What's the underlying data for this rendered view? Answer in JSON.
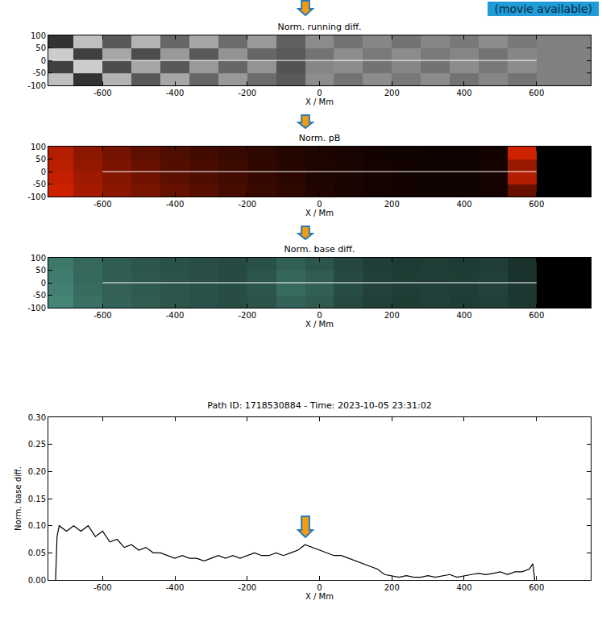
{
  "chart_data": [
    {
      "type": "heatmap",
      "title": "Norm. running diff.",
      "xlabel": "X / Mm",
      "annotation": "(movie available)",
      "color": "#ffffff",
      "zlim": [
        -1,
        1
      ],
      "xlim": [
        -750,
        750
      ],
      "xticks": [
        -600,
        -400,
        -200,
        0,
        200,
        400,
        600
      ],
      "ylim": [
        -100,
        100
      ],
      "yticks": [
        -100,
        -50,
        0,
        50,
        100
      ],
      "x": [
        -720,
        -640,
        -560,
        -480,
        -400,
        -320,
        -240,
        -160,
        -80,
        0,
        80,
        160,
        240,
        320,
        400,
        480,
        560,
        640,
        720
      ],
      "y": [
        -75,
        -25,
        25,
        75
      ],
      "z": [
        [
          0.5,
          -0.6,
          0.4,
          -0.3,
          0.3,
          -0.2,
          0.2,
          -0.15,
          -0.3,
          0.1,
          -0.1,
          0.1,
          -0.05,
          0.1,
          -0.1,
          0.05,
          -0.1,
          0,
          0
        ],
        [
          -0.5,
          0.6,
          -0.4,
          0.3,
          -0.3,
          0.2,
          -0.2,
          0.15,
          -0.35,
          0.05,
          0.1,
          -0.1,
          0.05,
          -0.1,
          0.1,
          -0.05,
          0.1,
          0,
          0
        ],
        [
          0.6,
          -0.5,
          0.3,
          -0.4,
          0.2,
          -0.3,
          0.15,
          -0.2,
          -0.3,
          -0.1,
          0.1,
          -0.05,
          0.1,
          -0.05,
          0.05,
          -0.1,
          0.05,
          0,
          0
        ],
        [
          -0.6,
          0.5,
          -0.3,
          0.4,
          -0.2,
          0.3,
          -0.15,
          0.2,
          -0.25,
          0.1,
          -0.1,
          0.05,
          -0.1,
          0.05,
          -0.05,
          0.1,
          -0.05,
          0,
          0
        ]
      ],
      "path": {
        "x": [
          -740,
          600
        ],
        "y": [
          0,
          0
        ]
      }
    },
    {
      "type": "heatmap",
      "title": "Norm. pB",
      "xlabel": "X / Mm",
      "color": "#ff2a00",
      "zlim": [
        0,
        1
      ],
      "xlim": [
        -750,
        750
      ],
      "xticks": [
        -600,
        -400,
        -200,
        0,
        200,
        400,
        600
      ],
      "ylim": [
        -100,
        100
      ],
      "yticks": [
        -100,
        -50,
        0,
        50,
        100
      ],
      "x": [
        -720,
        -640,
        -560,
        -480,
        -400,
        -320,
        -240,
        -160,
        -80,
        0,
        80,
        160,
        240,
        320,
        400,
        480,
        560,
        640,
        720
      ],
      "y": [
        -75,
        -25,
        25,
        75
      ],
      "z": [
        [
          0.8,
          0.65,
          0.55,
          0.47,
          0.4,
          0.34,
          0.28,
          0.22,
          0.18,
          0.13,
          0.1,
          0.08,
          0.07,
          0.06,
          0.06,
          0.08,
          0.4,
          0,
          0
        ],
        [
          0.77,
          0.62,
          0.52,
          0.44,
          0.37,
          0.31,
          0.26,
          0.21,
          0.17,
          0.12,
          0.1,
          0.08,
          0.07,
          0.06,
          0.06,
          0.08,
          0.7,
          0,
          0
        ],
        [
          0.73,
          0.58,
          0.48,
          0.4,
          0.33,
          0.29,
          0.24,
          0.19,
          0.15,
          0.12,
          0.1,
          0.08,
          0.07,
          0.06,
          0.06,
          0.08,
          0.6,
          0,
          0
        ],
        [
          0.7,
          0.55,
          0.45,
          0.37,
          0.3,
          0.26,
          0.22,
          0.18,
          0.14,
          0.11,
          0.09,
          0.07,
          0.06,
          0.05,
          0.05,
          0.07,
          0.8,
          0,
          0
        ]
      ],
      "path": {
        "x": [
          -600,
          600
        ],
        "y": [
          0,
          0
        ]
      }
    },
    {
      "type": "heatmap",
      "title": "Norm. base diff.",
      "xlabel": "X / Mm",
      "color": "#6fd6bf",
      "zlim": [
        0,
        1
      ],
      "xlim": [
        -750,
        750
      ],
      "xticks": [
        -600,
        -400,
        -200,
        0,
        200,
        400,
        600
      ],
      "ylim": [
        -100,
        100
      ],
      "yticks": [
        -100,
        -50,
        0,
        50,
        100
      ],
      "x": [
        -720,
        -640,
        -560,
        -480,
        -400,
        -320,
        -240,
        -160,
        -80,
        0,
        80,
        160,
        240,
        320,
        400,
        480,
        560,
        640,
        720
      ],
      "y": [
        -75,
        -25,
        25,
        75
      ],
      "z": [
        [
          0.62,
          0.52,
          0.46,
          0.43,
          0.4,
          0.38,
          0.36,
          0.39,
          0.46,
          0.42,
          0.34,
          0.3,
          0.28,
          0.3,
          0.28,
          0.3,
          0.26,
          0,
          0
        ],
        [
          0.6,
          0.5,
          0.45,
          0.42,
          0.4,
          0.38,
          0.36,
          0.4,
          0.5,
          0.45,
          0.36,
          0.31,
          0.29,
          0.3,
          0.29,
          0.31,
          0.25,
          0,
          0
        ],
        [
          0.58,
          0.49,
          0.44,
          0.41,
          0.39,
          0.37,
          0.35,
          0.4,
          0.48,
          0.43,
          0.35,
          0.3,
          0.28,
          0.29,
          0.28,
          0.3,
          0.24,
          0,
          0
        ],
        [
          0.56,
          0.48,
          0.43,
          0.4,
          0.38,
          0.36,
          0.34,
          0.38,
          0.45,
          0.4,
          0.33,
          0.29,
          0.27,
          0.28,
          0.27,
          0.29,
          0.23,
          0,
          0
        ]
      ],
      "path": {
        "x": [
          -600,
          600
        ],
        "y": [
          0,
          0
        ]
      }
    },
    {
      "type": "line",
      "title": "Path ID: 1718530884 - Time: 2023-10-05 23:31:02",
      "xlabel": "X / Mm",
      "ylabel": "Norm. base diff.",
      "color": "#000000",
      "xlim": [
        -750,
        750
      ],
      "xticks": [
        -600,
        -400,
        -200,
        0,
        200,
        400,
        600
      ],
      "ylim": [
        0,
        0.3
      ],
      "yticks": [
        {
          "value": 0,
          "label": "0.00"
        },
        {
          "value": 0.05,
          "label": "0.05"
        },
        {
          "value": 0.1,
          "label": "0.10"
        },
        {
          "value": 0.15,
          "label": "0.15"
        },
        {
          "value": 0.2,
          "label": "0.20"
        },
        {
          "value": 0.25,
          "label": "0.25"
        },
        {
          "value": 0.3,
          "label": "0.30"
        }
      ],
      "arrow": {
        "x": -40,
        "y": 0.065
      },
      "x": [
        -730,
        -726,
        -720,
        -700,
        -680,
        -660,
        -640,
        -620,
        -600,
        -580,
        -560,
        -540,
        -520,
        -500,
        -480,
        -460,
        -440,
        -420,
        -400,
        -380,
        -360,
        -340,
        -320,
        -300,
        -280,
        -260,
        -240,
        -220,
        -200,
        -180,
        -160,
        -140,
        -120,
        -100,
        -80,
        -60,
        -40,
        -20,
        0,
        20,
        40,
        60,
        80,
        100,
        120,
        140,
        160,
        180,
        200,
        220,
        240,
        260,
        280,
        300,
        320,
        340,
        360,
        380,
        400,
        420,
        440,
        460,
        480,
        500,
        520,
        540,
        560,
        580,
        590,
        595
      ],
      "values": [
        0,
        0.08,
        0.1,
        0.09,
        0.1,
        0.09,
        0.1,
        0.08,
        0.09,
        0.07,
        0.075,
        0.06,
        0.065,
        0.055,
        0.06,
        0.05,
        0.05,
        0.045,
        0.04,
        0.045,
        0.04,
        0.04,
        0.035,
        0.04,
        0.045,
        0.04,
        0.045,
        0.04,
        0.045,
        0.05,
        0.045,
        0.045,
        0.05,
        0.045,
        0.05,
        0.055,
        0.065,
        0.06,
        0.055,
        0.05,
        0.045,
        0.045,
        0.04,
        0.035,
        0.03,
        0.025,
        0.02,
        0.01,
        0.008,
        0.005,
        0.008,
        0.005,
        0.005,
        0.008,
        0.005,
        0.008,
        0.01,
        0.005,
        0.008,
        0.01,
        0.012,
        0.01,
        0.012,
        0.015,
        0.01,
        0.015,
        0.015,
        0.02,
        0.03,
        0
      ]
    }
  ]
}
